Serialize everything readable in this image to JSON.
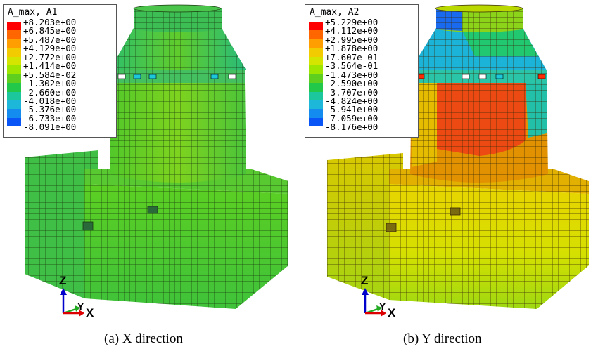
{
  "panels": [
    {
      "id": "a",
      "legend_title": "A_max, A1",
      "legend_values": [
        "+8.203e+00",
        "+6.845e+00",
        "+5.487e+00",
        "+4.129e+00",
        "+2.772e+00",
        "+1.414e+00",
        "+5.584e-02",
        "-1.302e+00",
        "-2.660e+00",
        "-4.018e+00",
        "-5.376e+00",
        "-6.733e+00",
        "-8.091e+00"
      ],
      "caption": "(a) X direction"
    },
    {
      "id": "b",
      "legend_title": "A_max, A2",
      "legend_values": [
        "+5.229e+00",
        "+4.112e+00",
        "+2.995e+00",
        "+1.878e+00",
        "+7.607e-01",
        "-3.564e-01",
        "-1.473e+00",
        "-2.590e+00",
        "-3.707e+00",
        "-4.824e+00",
        "-5.941e+00",
        "-7.059e+00",
        "-8.176e+00"
      ],
      "caption": "(b) Y direction"
    }
  ],
  "legend_colors": [
    "#ff0000",
    "#ff6600",
    "#ff9e00",
    "#f2cc00",
    "#d4e600",
    "#9ee600",
    "#5ecf1e",
    "#22c84a",
    "#1cc79e",
    "#1cb7d9",
    "#138bef",
    "#0a55f5",
    "#0000ff"
  ],
  "axis_labels": {
    "z": "Z",
    "y": "Y",
    "x": "X"
  },
  "axis_colors": {
    "z": "#0000cc",
    "y": "#22aa22",
    "x": "#dd0000"
  }
}
